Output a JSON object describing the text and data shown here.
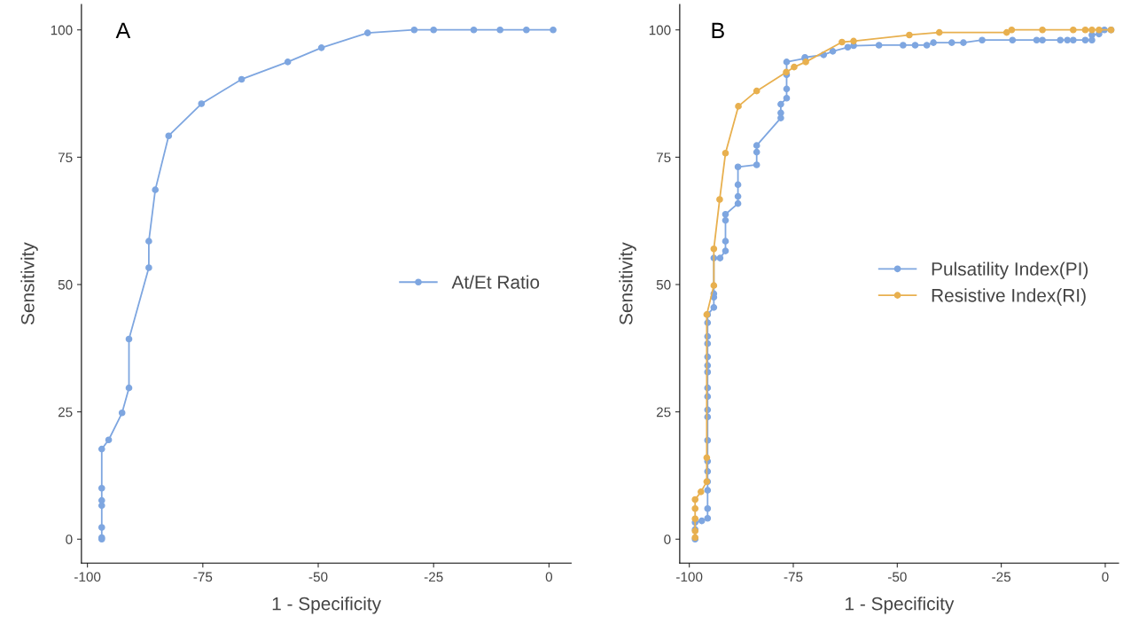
{
  "chart_data": [
    {
      "type": "line",
      "xlabel": "1 - Specificity",
      "ylabel": "Sensitivity",
      "annotations": [
        "A"
      ],
      "marker": "circle",
      "line_style": "solid",
      "legend": "right",
      "grid": false,
      "xlim": [
        -101.3,
        4.8
      ],
      "ylim": [
        -4.7,
        105
      ],
      "xticks": [
        -100,
        -75,
        -50,
        -25,
        0
      ],
      "yticks": [
        0,
        25,
        50,
        75,
        100
      ],
      "series": [
        {
          "name": "At/Et Ratio",
          "color": "#7ea6e0",
          "x": [
            -96.9,
            -96.9,
            -96.9,
            -96.9,
            -96.9,
            -96.9,
            -96.9,
            -95.4,
            -92.5,
            -91.0,
            -91.0,
            -86.7,
            -86.7,
            -85.3,
            -82.4,
            -75.3,
            -66.6,
            -56.6,
            -49.3,
            -39.3,
            -29.2,
            -25.0,
            -16.3,
            -10.6,
            -4.9,
            0.9
          ],
          "values": [
            0,
            0.3,
            2.3,
            6.6,
            7.6,
            10.0,
            17.7,
            19.5,
            24.8,
            29.7,
            39.3,
            53.3,
            58.5,
            68.6,
            79.2,
            85.5,
            90.3,
            93.7,
            96.5,
            99.4,
            100,
            100,
            100,
            100,
            100,
            100
          ]
        }
      ]
    },
    {
      "type": "line",
      "xlabel": "1 - Specificity",
      "ylabel": "Sensitivity",
      "annotations": [
        "B"
      ],
      "marker": "circle",
      "line_style": "solid",
      "legend": "right",
      "grid": false,
      "xlim": [
        -102.3,
        3.2
      ],
      "ylim": [
        -4.7,
        105
      ],
      "xticks": [
        -100,
        -75,
        -50,
        -25,
        0
      ],
      "yticks": [
        0,
        25,
        50,
        75,
        100
      ],
      "series": [
        {
          "name": "Pulsatility Index(PI)",
          "color": "#7ea6e0",
          "x": [
            -98.6,
            -98.6,
            -98.6,
            -97.0,
            -95.6,
            -95.6,
            -95.6,
            -95.6,
            -95.6,
            -95.6,
            -95.6,
            -95.6,
            -95.6,
            -95.6,
            -95.6,
            -95.6,
            -95.6,
            -95.6,
            -95.6,
            -95.6,
            -95.6,
            -95.6,
            -94.1,
            -94.1,
            -94.1,
            -94.1,
            -92.6,
            -91.3,
            -91.3,
            -91.3,
            -91.3,
            -88.3,
            -88.3,
            -88.3,
            -88.3,
            -83.8,
            -83.8,
            -83.8,
            -78.0,
            -78.0,
            -78.0,
            -76.6,
            -76.6,
            -76.6,
            -76.6,
            -72.2,
            -72.2,
            -67.7,
            -65.5,
            -61.9,
            -60.5,
            -54.4,
            -48.6,
            -45.7,
            -42.9,
            -41.3,
            -36.9,
            -34.1,
            -29.6,
            -22.3,
            -16.5,
            -15.1,
            -10.8,
            -9.1,
            -7.7,
            -4.8,
            -3.2,
            -3.2,
            -1.5,
            -0.2,
            1.4
          ],
          "values": [
            0,
            1.9,
            3.3,
            3.6,
            4.1,
            6.0,
            9.6,
            11.3,
            13.3,
            15.3,
            19.4,
            24.0,
            25.4,
            28.0,
            29.7,
            32.8,
            34.1,
            35.8,
            38.4,
            39.8,
            42.5,
            44.1,
            45.5,
            47.5,
            48.2,
            55.2,
            55.2,
            56.6,
            58.5,
            62.6,
            63.8,
            65.9,
            67.3,
            69.6,
            73.1,
            73.5,
            76.0,
            77.3,
            82.7,
            83.7,
            85.4,
            86.6,
            88.4,
            91.2,
            93.7,
            94.4,
            94.6,
            95.1,
            95.8,
            96.6,
            96.9,
            97.0,
            97.0,
            97.0,
            97.0,
            97.5,
            97.5,
            97.5,
            98.0,
            98.0,
            98.0,
            98.0,
            98.0,
            98.0,
            98.0,
            98.0,
            98.0,
            99.0,
            99.2,
            100,
            100
          ]
        },
        {
          "name": "Resistive Index(RI)",
          "color": "#e8b04f",
          "x": [
            -98.6,
            -98.6,
            -98.6,
            -98.6,
            -98.6,
            -97.2,
            -95.8,
            -95.8,
            -95.8,
            -94.1,
            -94.1,
            -92.7,
            -91.3,
            -88.2,
            -83.8,
            -76.7,
            -74.8,
            -72.0,
            -63.3,
            -60.5,
            -47.1,
            -39.9,
            -23.7,
            -22.5,
            -15.1,
            -7.7,
            -4.8,
            -3.2,
            -1.5,
            1.4
          ],
          "values": [
            0.3,
            1.6,
            4.0,
            6.0,
            7.8,
            9.3,
            11.3,
            16.0,
            44.1,
            49.8,
            57.0,
            66.7,
            75.8,
            85.0,
            88.0,
            91.7,
            92.7,
            93.7,
            97.6,
            97.8,
            99.0,
            99.5,
            99.5,
            100,
            100,
            100,
            100,
            100,
            100,
            100
          ]
        }
      ]
    }
  ]
}
